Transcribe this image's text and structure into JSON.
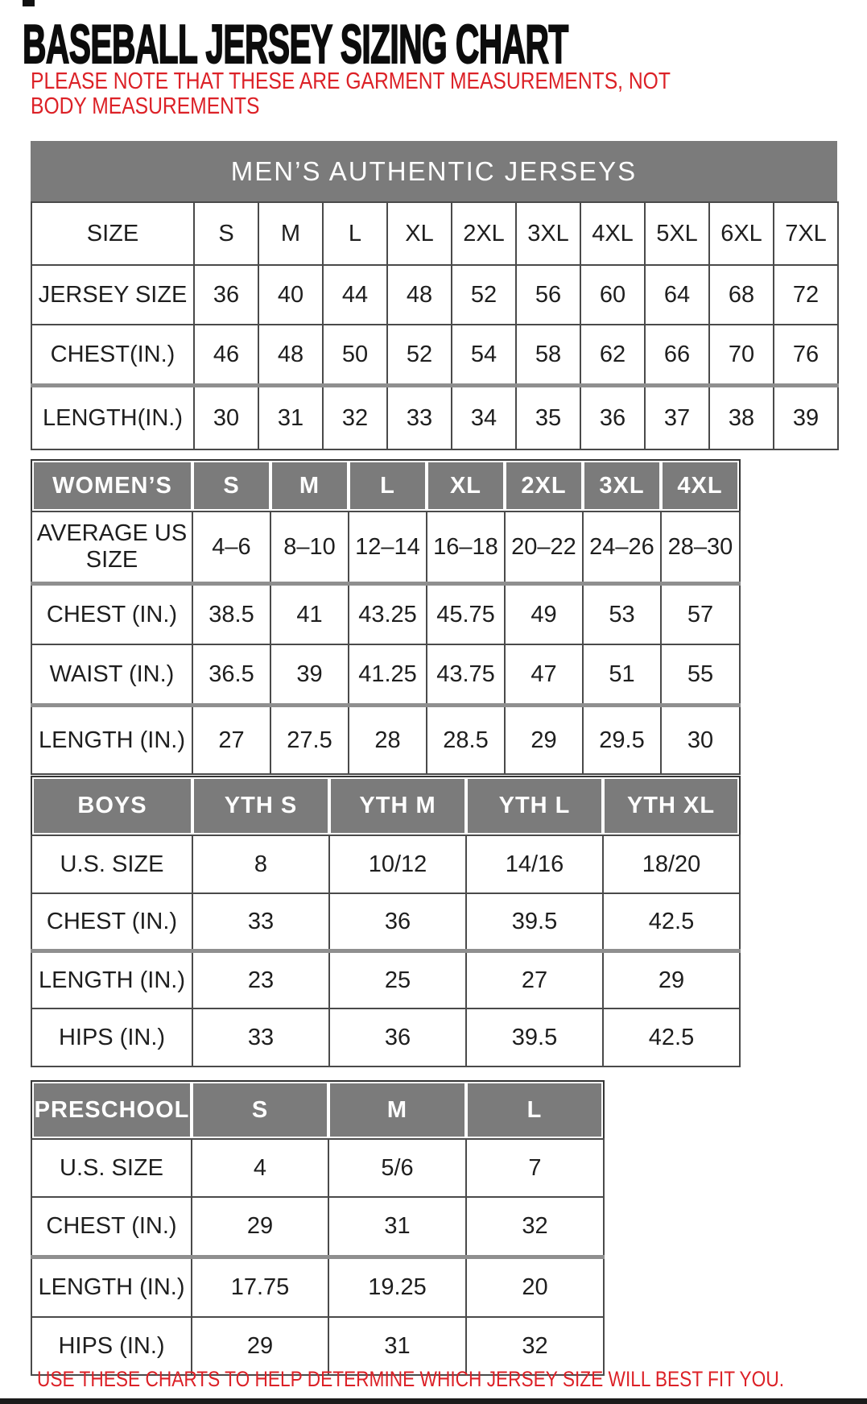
{
  "page": {
    "title": "BASEBALL JERSEY SIZING CHART",
    "note": "PLEASE NOTE THAT THESE ARE GARMENT MEASUREMENTS, NOT BODY MEASUREMENTS",
    "footer": "USE THESE CHARTS TO HELP DETERMINE WHICH JERSEY SIZE WILL BEST FIT YOU.",
    "colors": {
      "header_gray": "#7b7b7b",
      "note_red": "#dc2127",
      "border_dark": "#4a4a4a"
    }
  },
  "tables": {
    "mens": {
      "banner": "MEN’S AUTHENTIC JERSEYS",
      "header": [
        "SIZE",
        "S",
        "M",
        "L",
        "XL",
        "2XL",
        "3XL",
        "4XL",
        "5XL",
        "6XL",
        "7XL"
      ],
      "rows": [
        {
          "label": "JERSEY SIZE",
          "values": [
            "36",
            "40",
            "44",
            "48",
            "52",
            "56",
            "60",
            "64",
            "68",
            "72"
          ]
        },
        {
          "label": "CHEST(IN.)",
          "values": [
            "46",
            "48",
            "50",
            "52",
            "54",
            "58",
            "62",
            "66",
            "70",
            "76"
          ]
        },
        {
          "label": "LENGTH(IN.)",
          "values": [
            "30",
            "31",
            "32",
            "33",
            "34",
            "35",
            "36",
            "37",
            "38",
            "39"
          ]
        }
      ]
    },
    "womens": {
      "header": [
        "WOMEN’S",
        "S",
        "M",
        "L",
        "XL",
        "2XL",
        "3XL",
        "4XL"
      ],
      "rows": [
        {
          "label": "AVERAGE US SIZE",
          "values": [
            "4–6",
            "8–10",
            "12–14",
            "16–18",
            "20–22",
            "24–26",
            "28–30"
          ]
        },
        {
          "label": "CHEST (IN.)",
          "values": [
            "38.5",
            "41",
            "43.25",
            "45.75",
            "49",
            "53",
            "57"
          ]
        },
        {
          "label": "WAIST (IN.)",
          "values": [
            "36.5",
            "39",
            "41.25",
            "43.75",
            "47",
            "51",
            "55"
          ]
        },
        {
          "label": "LENGTH (IN.)",
          "values": [
            "27",
            "27.5",
            "28",
            "28.5",
            "29",
            "29.5",
            "30"
          ]
        }
      ]
    },
    "boys": {
      "header": [
        "BOYS",
        "YTH S",
        "YTH M",
        "YTH L",
        "YTH XL"
      ],
      "rows": [
        {
          "label": "U.S. SIZE",
          "values": [
            "8",
            "10/12",
            "14/16",
            "18/20"
          ]
        },
        {
          "label": "CHEST (IN.)",
          "values": [
            "33",
            "36",
            "39.5",
            "42.5"
          ]
        },
        {
          "label": "LENGTH (IN.)",
          "values": [
            "23",
            "25",
            "27",
            "29"
          ]
        },
        {
          "label": "HIPS (IN.)",
          "values": [
            "33",
            "36",
            "39.5",
            "42.5"
          ]
        }
      ]
    },
    "preschool": {
      "header": [
        "PRESCHOOL",
        "S",
        "M",
        "L"
      ],
      "rows": [
        {
          "label": "U.S. SIZE",
          "values": [
            "4",
            "5/6",
            "7"
          ]
        },
        {
          "label": "CHEST (IN.)",
          "values": [
            "29",
            "31",
            "32"
          ]
        },
        {
          "label": "LENGTH (IN.)",
          "values": [
            "17.75",
            "19.25",
            "20"
          ]
        },
        {
          "label": "HIPS (IN.)",
          "values": [
            "29",
            "31",
            "32"
          ]
        }
      ]
    }
  }
}
